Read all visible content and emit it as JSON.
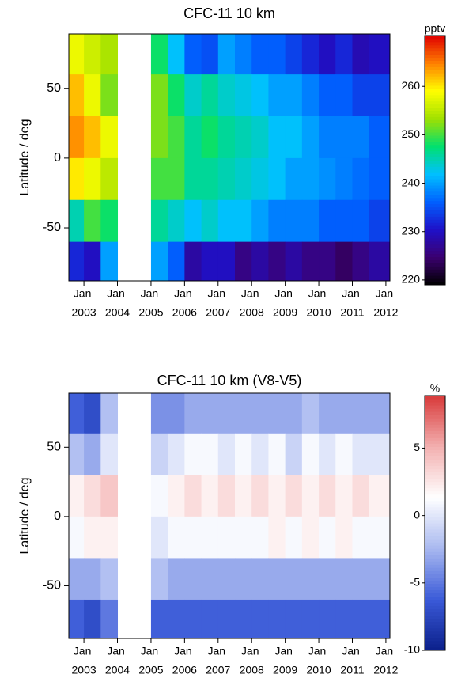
{
  "chart_data": [
    {
      "type": "heatmap",
      "title": "CFC-11 10 km",
      "ylabel": "Latitude / deg",
      "x": [
        2002.75,
        2003.25,
        2003.75,
        2004.25,
        2004.75,
        2005.25,
        2005.75,
        2006.25,
        2006.75,
        2007.25,
        2007.75,
        2008.25,
        2008.75,
        2009.25,
        2009.75,
        2010.25,
        2010.75,
        2011.25,
        2011.75
      ],
      "y": [
        75,
        45,
        15,
        -15,
        -45,
        -75
      ],
      "z": [
        [
          258,
          256,
          254,
          null,
          null,
          248,
          242,
          236,
          235,
          240,
          238,
          236,
          236,
          234,
          232,
          230,
          232,
          229,
          230
        ],
        [
          262,
          258,
          252,
          null,
          null,
          252,
          248,
          244,
          246,
          244,
          243,
          242,
          240,
          240,
          238,
          236,
          236,
          234,
          234
        ],
        [
          264,
          262,
          258,
          null,
          null,
          252,
          250,
          246,
          248,
          246,
          245,
          244,
          242,
          242,
          240,
          238,
          238,
          238,
          236
        ],
        [
          260,
          258,
          255,
          null,
          null,
          250,
          250,
          246,
          246,
          245,
          244,
          243,
          242,
          240,
          240,
          239,
          238,
          237,
          236
        ],
        [
          245,
          250,
          248,
          null,
          null,
          246,
          244,
          242,
          244,
          242,
          242,
          240,
          238,
          238,
          238,
          236,
          236,
          236,
          234
        ],
        [
          232,
          230,
          240,
          null,
          null,
          240,
          236,
          228,
          230,
          230,
          226,
          228,
          226,
          228,
          226,
          226,
          224,
          226,
          228
        ]
      ],
      "xlim": [
        2002.55,
        2012.12
      ],
      "ylim": [
        -88,
        89
      ],
      "yticks": [
        -50,
        0,
        50
      ],
      "xticks": [
        {
          "value": 2003,
          "label": "Jan"
        },
        {
          "value": 2004,
          "label": "Jan"
        },
        {
          "value": 2005,
          "label": "Jan"
        },
        {
          "value": 2006,
          "label": "Jan"
        },
        {
          "value": 2007,
          "label": "Jan"
        },
        {
          "value": 2008,
          "label": "Jan"
        },
        {
          "value": 2009,
          "label": "Jan"
        },
        {
          "value": 2010,
          "label": "Jan"
        },
        {
          "value": 2011,
          "label": "Jan"
        },
        {
          "value": 2012,
          "label": "Jan"
        }
      ],
      "xticks_year": [
        2003,
        2004,
        2005,
        2006,
        2007,
        2008,
        2009,
        2010,
        2011,
        2012
      ],
      "colorbar_label": "pptv",
      "clim": [
        219,
        270.5
      ],
      "cticks": [
        220,
        230,
        240,
        250,
        260
      ],
      "colormap": [
        "#000000",
        "#3b0070",
        "#1f10c8",
        "#0060ff",
        "#00c0ff",
        "#00e070",
        "#a0e000",
        "#ffff00",
        "#ff8000",
        "#e00000"
      ]
    },
    {
      "type": "heatmap",
      "title": "CFC-11 10 km (V8-V5)",
      "ylabel": "Latitude / deg",
      "x": [
        2002.75,
        2003.25,
        2003.75,
        2004.25,
        2004.75,
        2005.25,
        2005.75,
        2006.25,
        2006.75,
        2007.25,
        2007.75,
        2008.25,
        2008.75,
        2009.25,
        2009.75,
        2010.25,
        2010.75,
        2011.25,
        2011.75
      ],
      "y": [
        75,
        45,
        15,
        -15,
        -45,
        -75
      ],
      "z": [
        [
          -6,
          -7,
          -2,
          null,
          null,
          -4,
          -4,
          -3,
          -3,
          -3,
          -3,
          -3,
          -3,
          -3,
          -2,
          -3,
          -3,
          -3,
          -3
        ],
        [
          -2,
          -3,
          0,
          null,
          null,
          -1,
          0,
          1,
          1,
          0,
          1,
          0,
          1,
          -1,
          1,
          0,
          1,
          0,
          0
        ],
        [
          2,
          3,
          4,
          null,
          null,
          1,
          2,
          3,
          2,
          3,
          2,
          3,
          2,
          3,
          2,
          3,
          2,
          3,
          2
        ],
        [
          1,
          2,
          2,
          null,
          null,
          0,
          1,
          1,
          1,
          1,
          1,
          1,
          2,
          1,
          2,
          1,
          2,
          1,
          1
        ],
        [
          -3,
          -3,
          -2,
          null,
          null,
          -2,
          -3,
          -3,
          -3,
          -3,
          -3,
          -3,
          -3,
          -3,
          -3,
          -3,
          -3,
          -3,
          -3
        ],
        [
          -6,
          -7,
          -5,
          null,
          null,
          -6,
          -6,
          -6,
          -6,
          -6,
          -6,
          -6,
          -6,
          -6,
          -6,
          -6,
          -6,
          -6,
          -6
        ]
      ],
      "xlim": [
        2002.55,
        2012.12
      ],
      "ylim": [
        -88,
        89
      ],
      "yticks": [
        -50,
        0,
        50
      ],
      "xticks": [
        {
          "value": 2003,
          "label": "Jan"
        },
        {
          "value": 2004,
          "label": "Jan"
        },
        {
          "value": 2005,
          "label": "Jan"
        },
        {
          "value": 2006,
          "label": "Jan"
        },
        {
          "value": 2007,
          "label": "Jan"
        },
        {
          "value": 2008,
          "label": "Jan"
        },
        {
          "value": 2009,
          "label": "Jan"
        },
        {
          "value": 2010,
          "label": "Jan"
        },
        {
          "value": 2011,
          "label": "Jan"
        },
        {
          "value": 2012,
          "label": "Jan"
        }
      ],
      "xticks_year": [
        2003,
        2004,
        2005,
        2006,
        2007,
        2008,
        2009,
        2010,
        2011,
        2012
      ],
      "colorbar_label": "%",
      "clim": [
        -10,
        8.9
      ],
      "cticks": [
        -10,
        -5,
        0,
        5
      ],
      "colormap": [
        "#0a1f8a",
        "#3a5ad8",
        "#a8b8f0",
        "#ffffff",
        "#f3b0b0",
        "#d83a3a"
      ]
    }
  ]
}
